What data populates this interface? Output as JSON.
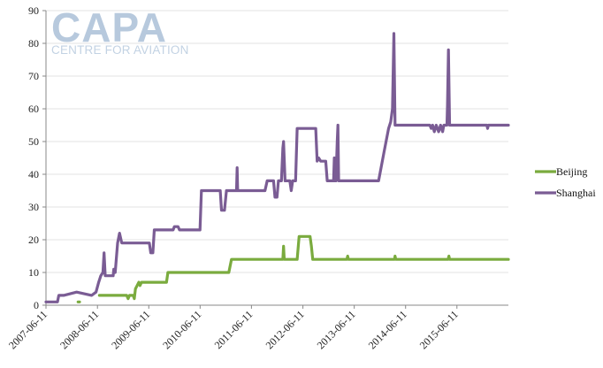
{
  "watermark": {
    "main": "CAPA",
    "sub": "CENTRE FOR AVIATION"
  },
  "chart_data": {
    "type": "line",
    "title": "",
    "xlabel": "",
    "ylabel": "",
    "ylim": [
      0,
      90
    ],
    "yticks": [
      0,
      10,
      20,
      30,
      40,
      50,
      60,
      70,
      80,
      90
    ],
    "xlim": [
      "2007-06-11",
      "2016-06-11"
    ],
    "xticks": [
      "2007-06-11",
      "2008-06-11",
      "2009-06-11",
      "2010-06-11",
      "2011-06-11",
      "2012-06-11",
      "2013-06-11",
      "2014-06-11",
      "2015-06-11"
    ],
    "grid": "horizontal",
    "legend": "right",
    "series": [
      {
        "name": "Beijing",
        "color": "#7aab3e",
        "segments": [
          [
            [
              "2008-01-25",
              1
            ],
            [
              "2008-02-05",
              1
            ]
          ],
          [
            [
              "2008-06-25",
              3
            ],
            [
              "2009-01-05",
              3
            ],
            [
              "2009-01-15",
              2
            ],
            [
              "2009-01-25",
              3
            ],
            [
              "2009-02-20",
              3
            ],
            [
              "2009-02-28",
              2
            ],
            [
              "2009-03-08",
              5
            ],
            [
              "2009-03-20",
              6
            ],
            [
              "2009-04-01",
              7
            ],
            [
              "2009-04-10",
              6
            ],
            [
              "2009-04-20",
              7
            ],
            [
              "2009-10-15",
              7
            ],
            [
              "2009-10-25",
              10
            ],
            [
              "2011-01-01",
              10
            ],
            [
              "2011-01-20",
              14
            ],
            [
              "2012-01-20",
              14
            ],
            [
              "2012-01-25",
              18
            ],
            [
              "2012-01-30",
              14
            ],
            [
              "2012-05-01",
              14
            ],
            [
              "2012-05-15",
              21
            ],
            [
              "2012-08-01",
              21
            ],
            [
              "2012-08-10",
              18
            ],
            [
              "2012-08-20",
              14
            ],
            [
              "2013-04-20",
              14
            ],
            [
              "2013-04-25",
              15
            ],
            [
              "2013-04-30",
              14
            ],
            [
              "2014-03-25",
              14
            ],
            [
              "2014-03-28",
              15
            ],
            [
              "2014-04-02",
              14
            ],
            [
              "2015-04-10",
              14
            ],
            [
              "2015-04-15",
              15
            ],
            [
              "2015-04-20",
              14
            ],
            [
              "2016-06-11",
              14
            ]
          ]
        ]
      },
      {
        "name": "Shanghai",
        "color": "#7a5c94",
        "segments": [
          [
            [
              "2007-06-11",
              1
            ],
            [
              "2007-09-01",
              1
            ],
            [
              "2007-09-10",
              3
            ],
            [
              "2007-10-15",
              3
            ],
            [
              "2008-01-15",
              4
            ],
            [
              "2008-05-01",
              3
            ],
            [
              "2008-06-01",
              4
            ],
            [
              "2008-06-20",
              7
            ],
            [
              "2008-07-05",
              9
            ],
            [
              "2008-07-20",
              10
            ],
            [
              "2008-07-28",
              16
            ],
            [
              "2008-08-05",
              9
            ],
            [
              "2008-10-01",
              9
            ],
            [
              "2008-10-05",
              11
            ],
            [
              "2008-10-15",
              10
            ],
            [
              "2008-11-01",
              19
            ],
            [
              "2008-11-15",
              22
            ],
            [
              "2008-12-01",
              19
            ],
            [
              "2009-06-15",
              19
            ],
            [
              "2009-06-25",
              16
            ],
            [
              "2009-07-10",
              16
            ],
            [
              "2009-07-20",
              23
            ],
            [
              "2009-12-01",
              23
            ],
            [
              "2009-12-10",
              24
            ],
            [
              "2010-01-05",
              24
            ],
            [
              "2010-01-15",
              23
            ],
            [
              "2010-06-10",
              23
            ],
            [
              "2010-06-20",
              35
            ],
            [
              "2010-11-01",
              35
            ],
            [
              "2010-11-10",
              29
            ],
            [
              "2010-12-01",
              29
            ],
            [
              "2010-12-15",
              35
            ],
            [
              "2011-02-25",
              35
            ],
            [
              "2011-03-01",
              42
            ],
            [
              "2011-03-05",
              35
            ],
            [
              "2011-09-15",
              35
            ],
            [
              "2011-10-01",
              38
            ],
            [
              "2011-11-15",
              38
            ],
            [
              "2011-11-25",
              33
            ],
            [
              "2011-12-10",
              33
            ],
            [
              "2011-12-20",
              38
            ],
            [
              "2012-01-10",
              38
            ],
            [
              "2012-01-20",
              48
            ],
            [
              "2012-01-25",
              50
            ],
            [
              "2012-02-05",
              38
            ],
            [
              "2012-03-10",
              38
            ],
            [
              "2012-03-20",
              35
            ],
            [
              "2012-03-30",
              38
            ],
            [
              "2012-04-20",
              38
            ],
            [
              "2012-05-01",
              54
            ],
            [
              "2012-09-10",
              54
            ],
            [
              "2012-09-20",
              44
            ],
            [
              "2012-10-01",
              45
            ],
            [
              "2012-10-15",
              44
            ],
            [
              "2012-11-20",
              44
            ],
            [
              "2012-12-01",
              38
            ],
            [
              "2013-01-15",
              38
            ],
            [
              "2013-01-20",
              45
            ],
            [
              "2013-01-25",
              38
            ],
            [
              "2013-02-01",
              38
            ],
            [
              "2013-02-10",
              50
            ],
            [
              "2013-02-15",
              55
            ],
            [
              "2013-02-20",
              38
            ],
            [
              "2013-12-01",
              38
            ],
            [
              "2014-01-10",
              47
            ],
            [
              "2014-02-10",
              54
            ],
            [
              "2014-02-25",
              56
            ],
            [
              "2014-03-10",
              60
            ],
            [
              "2014-03-20",
              83
            ],
            [
              "2014-03-28",
              55
            ],
            [
              "2014-12-01",
              55
            ],
            [
              "2014-12-10",
              54
            ],
            [
              "2014-12-20",
              55
            ],
            [
              "2015-01-01",
              53
            ],
            [
              "2015-01-15",
              55
            ],
            [
              "2015-02-01",
              53
            ],
            [
              "2015-02-15",
              55
            ],
            [
              "2015-03-01",
              53
            ],
            [
              "2015-03-10",
              55
            ],
            [
              "2015-04-01",
              55
            ],
            [
              "2015-04-05",
              61
            ],
            [
              "2015-04-12",
              78
            ],
            [
              "2015-04-20",
              55
            ],
            [
              "2016-01-10",
              55
            ],
            [
              "2016-01-15",
              54
            ],
            [
              "2016-01-20",
              55
            ],
            [
              "2016-06-11",
              55
            ]
          ]
        ]
      }
    ]
  }
}
